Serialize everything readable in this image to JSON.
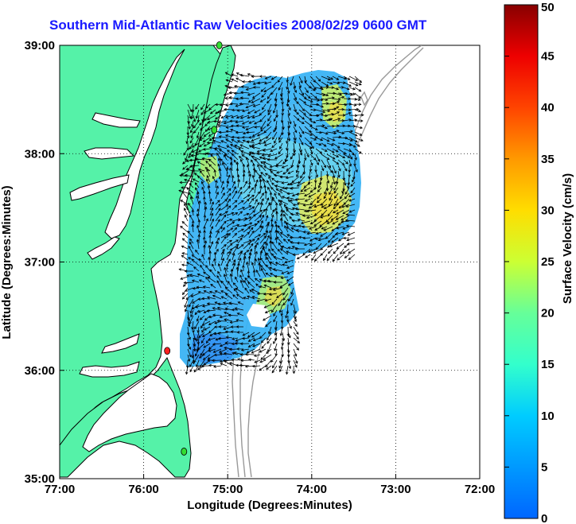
{
  "title": "Southern Mid-Atlantic Raw Velocities 2008/02/29 0600 GMT",
  "xaxis": {
    "label": "Longitude (Degrees:Minutes)",
    "ticks": [
      "77:00",
      "76:00",
      "75:00",
      "74:00",
      "73:00",
      "72:00"
    ]
  },
  "yaxis": {
    "label": "Latitude (Degrees:Minutes)",
    "ticks": [
      "39:00",
      "38:00",
      "37:00",
      "36:00",
      "35:00"
    ]
  },
  "colorbar": {
    "label": "Surface Velocity (cm/s)",
    "ticks": [
      "50",
      "45",
      "40",
      "35",
      "30",
      "25",
      "20",
      "15",
      "10",
      "5",
      "0"
    ],
    "range": [
      0,
      50
    ]
  },
  "colors": {
    "land": "#55f2a8",
    "coastline": "#000000",
    "bathymetry": "#999999",
    "title": "#1a1aff",
    "station_active": "#33dd33",
    "station_flag": "#ff2020"
  },
  "stations": [
    {
      "id": "n",
      "lon": -75.1,
      "lat": 39.0,
      "status": "active"
    },
    {
      "id": "m",
      "lon": -75.16,
      "lat": 38.22,
      "status": "active"
    },
    {
      "id": "c",
      "lon": -75.72,
      "lat": 36.18,
      "status": "flag"
    },
    {
      "id": "s",
      "lon": -75.52,
      "lat": 35.25,
      "status": "active"
    }
  ],
  "map_extent": {
    "lon": [
      -77,
      -72
    ],
    "lat": [
      35,
      39
    ]
  }
}
